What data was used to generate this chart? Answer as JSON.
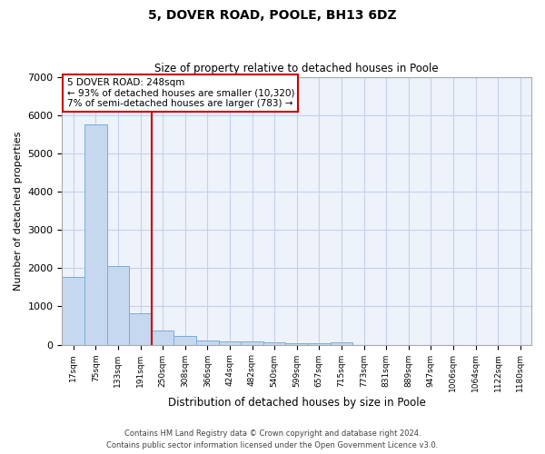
{
  "title": "5, DOVER ROAD, POOLE, BH13 6DZ",
  "subtitle": "Size of property relative to detached houses in Poole",
  "xlabel": "Distribution of detached houses by size in Poole",
  "ylabel": "Number of detached properties",
  "bar_color": "#c5d8f0",
  "bar_edge_color": "#7aaed4",
  "background_color": "#eef2fb",
  "grid_color": "#c8d0e8",
  "vline_color": "#cc0000",
  "annotation_text_line1": "5 DOVER ROAD: 248sqm",
  "annotation_text_line2": "← 93% of detached houses are smaller (10,320)",
  "annotation_text_line3": "7% of semi-detached houses are larger (783) →",
  "annotation_box_color": "#ffffff",
  "annotation_edge_color": "#cc0000",
  "categories": [
    "17sqm",
    "75sqm",
    "133sqm",
    "191sqm",
    "250sqm",
    "308sqm",
    "366sqm",
    "424sqm",
    "482sqm",
    "540sqm",
    "599sqm",
    "657sqm",
    "715sqm",
    "773sqm",
    "831sqm",
    "889sqm",
    "947sqm",
    "1006sqm",
    "1064sqm",
    "1122sqm",
    "1180sqm"
  ],
  "values": [
    1780,
    5750,
    2050,
    830,
    370,
    230,
    120,
    95,
    85,
    50,
    40,
    35,
    55,
    0,
    0,
    0,
    0,
    0,
    0,
    0,
    0
  ],
  "vline_index": 4,
  "ylim": [
    0,
    7000
  ],
  "yticks": [
    0,
    1000,
    2000,
    3000,
    4000,
    5000,
    6000,
    7000
  ],
  "footer_line1": "Contains HM Land Registry data © Crown copyright and database right 2024.",
  "footer_line2": "Contains public sector information licensed under the Open Government Licence v3.0."
}
